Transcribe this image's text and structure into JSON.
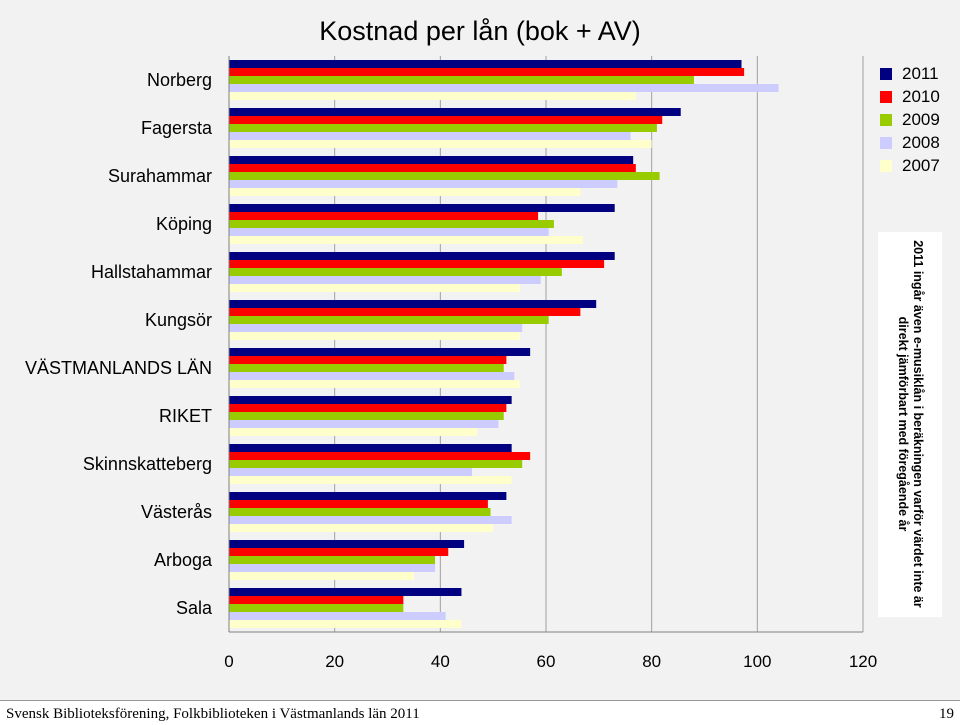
{
  "chart_data": {
    "type": "bar",
    "orientation": "horizontal",
    "title": "Kostnad per lån (bok + AV)",
    "categories": [
      "Norberg",
      "Fagersta",
      "Surahammar",
      "Köping",
      "Hallstahammar",
      "Kungsör",
      "VÄSTMANLANDS LÄN",
      "RIKET",
      "Skinnskatteberg",
      "Västerås",
      "Arboga",
      "Sala"
    ],
    "series": [
      {
        "name": "2011",
        "color": "#000080",
        "values": [
          97,
          85.5,
          76.5,
          73,
          73,
          69.5,
          57,
          53.5,
          53.5,
          52.5,
          44.5,
          44
        ]
      },
      {
        "name": "2010",
        "color": "#ff0000",
        "values": [
          97.5,
          82,
          77,
          58.5,
          71,
          66.5,
          52.5,
          52.5,
          57,
          49,
          41.5,
          33
        ]
      },
      {
        "name": "2009",
        "color": "#99cc00",
        "values": [
          88,
          81,
          81.5,
          61.5,
          63,
          60.5,
          52,
          52,
          55.5,
          49.5,
          39,
          33
        ]
      },
      {
        "name": "2008",
        "color": "#ccccff",
        "values": [
          104,
          76,
          73.5,
          60.5,
          59,
          55.5,
          54,
          51,
          46,
          53.5,
          39,
          41
        ]
      },
      {
        "name": "2007",
        "color": "#ffffcc",
        "values": [
          77,
          80,
          66.5,
          67,
          55,
          55,
          55,
          47,
          53.5,
          50,
          35,
          44
        ]
      }
    ],
    "xlim": [
      0,
      120
    ],
    "xticks": [
      "0",
      "20",
      "40",
      "60",
      "80",
      "100",
      "120"
    ],
    "grid": "vertical",
    "legend_position": "right"
  },
  "note": "2011 ingår även e-musiklån i beräkningen varför värdet inte är direkt jämförbart med föregående år",
  "footer": {
    "left": "Svensk Biblioteksförening, Folkbiblioteken i Västmanlands län 2011",
    "right": "19"
  }
}
